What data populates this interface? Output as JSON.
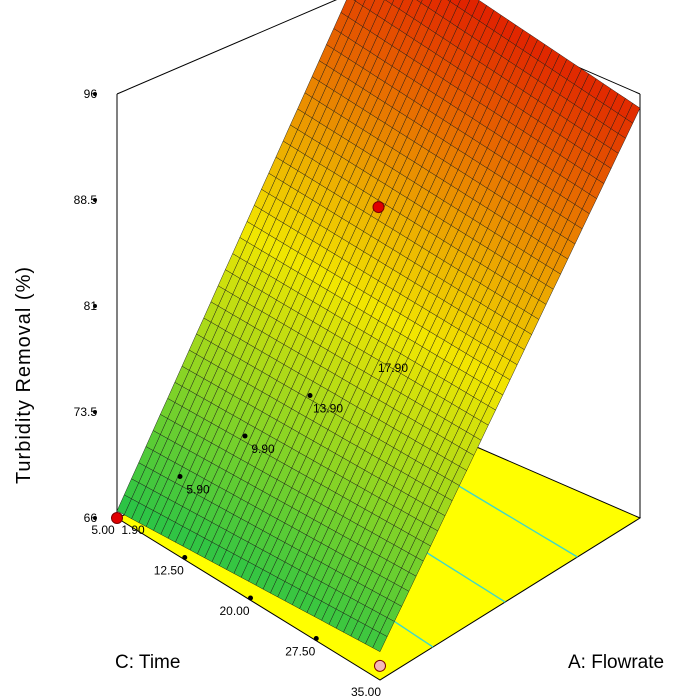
{
  "chart_data": {
    "type": "surface3d",
    "zlabel": "Turbidity Removal (%)",
    "xlabel": "A: Flowrate",
    "ylabel": "C: Time",
    "x_ticks": [
      "1.90",
      "5.90",
      "9.90",
      "13.90",
      "17.90"
    ],
    "y_ticks": [
      "5.00",
      "12.50",
      "20.00",
      "27.50",
      "35.00"
    ],
    "z_ticks": [
      "66",
      "73.5",
      "81",
      "88.5",
      "96"
    ],
    "xlim": [
      1.9,
      17.9
    ],
    "ylim": [
      5.0,
      35.0
    ],
    "zlim": [
      66,
      96
    ],
    "surface_corners": [
      {
        "x": 1.9,
        "y": 5.0,
        "z": 66.5
      },
      {
        "x": 17.9,
        "y": 5.0,
        "z": 96.0
      },
      {
        "x": 1.9,
        "y": 35.0,
        "z": 68.0
      },
      {
        "x": 17.9,
        "y": 35.0,
        "z": 95.0
      }
    ],
    "design_points": [
      {
        "x": 17.9,
        "y": 5.0,
        "z": 96.0,
        "position": "above"
      },
      {
        "x": 9.9,
        "y": 20.0,
        "z": 88.0,
        "position": "above"
      },
      {
        "x": 1.9,
        "y": 5.0,
        "z": 66.0,
        "position": "above"
      },
      {
        "x": 1.9,
        "y": 35.0,
        "z": 67.0,
        "position": "below"
      }
    ],
    "colors": {
      "low": "#1fc24a",
      "mid": "#f2e600",
      "high": "#e01a00",
      "floor": "#ffff00",
      "contour": "#3fd8c9",
      "point": "#e00000",
      "point_below": "#f4b8b8"
    }
  }
}
